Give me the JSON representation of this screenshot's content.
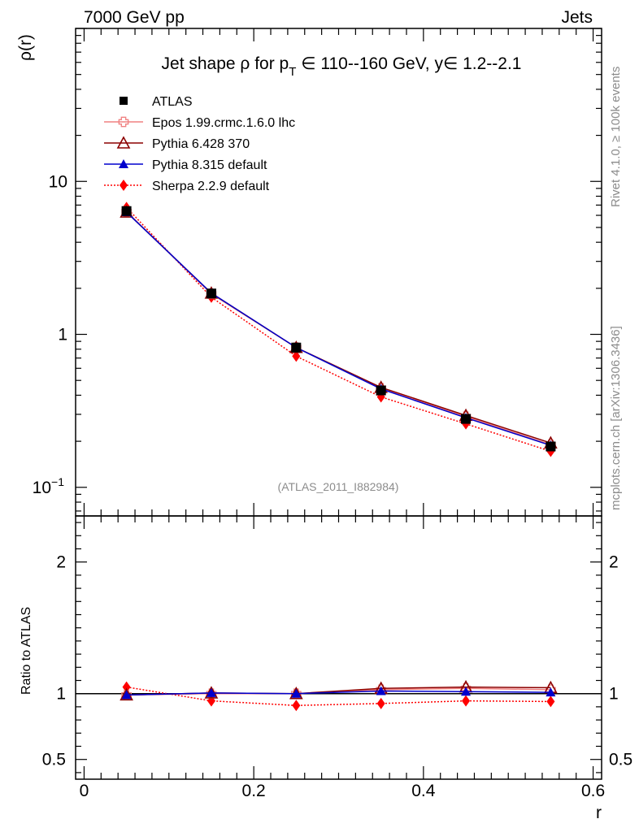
{
  "header": {
    "left": "7000 GeV pp",
    "right": "Jets"
  },
  "side_labels": {
    "rivet": "Rivet 4.1.0, ≥ 100k events",
    "mcplots": "mcplots.cern.ch [arXiv:1306.3436]"
  },
  "chart_data": {
    "type": "line",
    "title": "Jet shape ρ for p_T ∈ 110--160 GeV, y∈ 1.2--2.1",
    "title_parts": {
      "pre": "Jet shape ρ for p",
      "sub": "T",
      "post": " ∈ 110--160 GeV, y∈ 1.2--2.1"
    },
    "analysis_label": "(ATLAS_2011_I882984)",
    "xlabel": "r",
    "ylabel": "ρ(r)",
    "ratio_ylabel": "Ratio to ATLAS",
    "xlim": [
      -0.01,
      0.61
    ],
    "ylim_log": [
      0.065,
      100
    ],
    "ratio_ylim": [
      0.35,
      2.35
    ],
    "x_ticks": [
      "0",
      "0.2",
      "0.4",
      "0.6"
    ],
    "x_tick_values": [
      0,
      0.2,
      0.4,
      0.6
    ],
    "y_ticks_main": [
      {
        "value": 10,
        "label": "10"
      },
      {
        "value": 1,
        "label": "1"
      },
      {
        "value": 0.1,
        "label_base": "10",
        "label_exp": "−1"
      }
    ],
    "y_ticks_ratio": [
      {
        "value": 2,
        "label": "2"
      },
      {
        "value": 1,
        "label": "1"
      },
      {
        "value": 0.5,
        "label": "0.5"
      }
    ],
    "x": [
      0.05,
      0.15,
      0.25,
      0.35,
      0.45,
      0.55
    ],
    "legend_position": "top-left",
    "series": [
      {
        "name": "ATLAS",
        "color": "#000000",
        "marker": "square",
        "line": "none",
        "values": [
          6.4,
          1.85,
          0.82,
          0.43,
          0.28,
          0.185
        ]
      },
      {
        "name": "Epos 1.99.crmc.1.6.0 lhc",
        "color": "#f08080",
        "marker": "open-cross",
        "line": "solid",
        "values": [
          6.35,
          1.84,
          0.82,
          0.445,
          0.29,
          0.19
        ],
        "ratio": [
          0.99,
          1.0,
          1.0,
          1.03,
          1.04,
          1.03
        ]
      },
      {
        "name": "Pythia 6.428 370",
        "color": "#8b0000",
        "marker": "open-triangle",
        "line": "solid",
        "values": [
          6.3,
          1.86,
          0.82,
          0.45,
          0.295,
          0.195
        ],
        "ratio": [
          0.99,
          1.005,
          1.0,
          1.04,
          1.05,
          1.045
        ]
      },
      {
        "name": "Pythia 8.315 default",
        "color": "#0000cd",
        "marker": "triangle",
        "line": "solid",
        "values": [
          6.3,
          1.86,
          0.82,
          0.44,
          0.285,
          0.188
        ],
        "ratio": [
          0.99,
          1.005,
          1.0,
          1.02,
          1.015,
          1.01
        ]
      },
      {
        "name": "Sherpa 2.2.9 default",
        "color": "#ff0000",
        "marker": "diamond",
        "line": "dotted",
        "values": [
          6.75,
          1.75,
          0.72,
          0.39,
          0.26,
          0.172
        ],
        "ratio": [
          1.05,
          0.945,
          0.91,
          0.925,
          0.945,
          0.94
        ]
      }
    ]
  }
}
